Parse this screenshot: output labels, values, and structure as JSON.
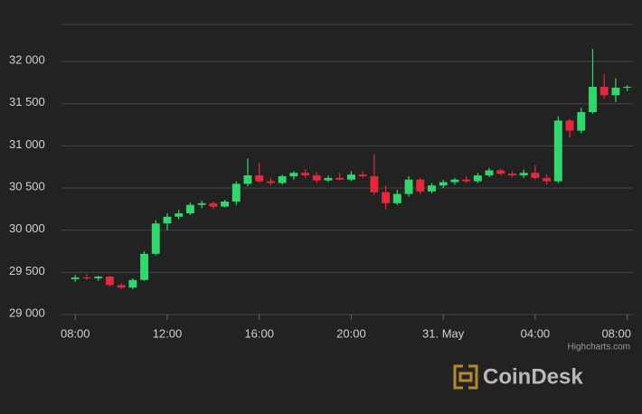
{
  "chart_data": {
    "type": "candlestick",
    "x": [
      8,
      8.5,
      9,
      9.5,
      10,
      10.5,
      11,
      11.5,
      12,
      12.5,
      13,
      13.5,
      14,
      14.5,
      15,
      15.5,
      16,
      16.5,
      17,
      17.5,
      18,
      18.5,
      19,
      19.5,
      20,
      20.5,
      21,
      21.5,
      22,
      22.5,
      23,
      23.5,
      24,
      24.5,
      25,
      25.5,
      26,
      26.5,
      27,
      27.5,
      28,
      28.5,
      29,
      29.5,
      30,
      30.5,
      31,
      31.5,
      32
    ],
    "open": [
      29420,
      29440,
      29430,
      29450,
      29350,
      29320,
      29410,
      29720,
      30080,
      30160,
      30200,
      30300,
      30320,
      30280,
      30340,
      30550,
      30650,
      30580,
      30560,
      30640,
      30680,
      30650,
      30590,
      30620,
      30600,
      30660,
      30640,
      30450,
      30320,
      30430,
      30600,
      30460,
      30530,
      30570,
      30600,
      30580,
      30650,
      30710,
      30670,
      30650,
      30680,
      30620,
      30580,
      31300,
      31180,
      31400,
      31700,
      31600,
      31690
    ],
    "high": [
      29470,
      29480,
      29460,
      29460,
      29370,
      29430,
      29750,
      30120,
      30200,
      30240,
      30330,
      30350,
      30340,
      30360,
      30580,
      30850,
      30800,
      30620,
      30660,
      30700,
      30720,
      30690,
      30650,
      30680,
      30700,
      30700,
      30900,
      30530,
      30480,
      30640,
      30620,
      30560,
      30600,
      30620,
      30640,
      30680,
      30740,
      30730,
      30700,
      30720,
      30770,
      30660,
      31350,
      31320,
      31450,
      32150,
      31850,
      31800,
      31720
    ],
    "low": [
      29390,
      29410,
      29400,
      29330,
      29300,
      29300,
      29400,
      29700,
      30000,
      30130,
      30180,
      30260,
      30250,
      30270,
      30300,
      30520,
      30560,
      30530,
      30540,
      30600,
      30620,
      30560,
      30570,
      30590,
      30580,
      30620,
      30420,
      30250,
      30300,
      30400,
      30430,
      30440,
      30500,
      30540,
      30560,
      30560,
      30630,
      30650,
      30630,
      30620,
      30600,
      30540,
      30560,
      31100,
      31150,
      31380,
      31560,
      31520,
      31650
    ],
    "close": [
      29440,
      29430,
      29450,
      29350,
      29320,
      29410,
      29720,
      30080,
      30160,
      30200,
      30300,
      30320,
      30280,
      30340,
      30550,
      30650,
      30580,
      30560,
      30640,
      30680,
      30650,
      30590,
      30620,
      30600,
      30660,
      30640,
      30450,
      30320,
      30430,
      30600,
      30460,
      30530,
      30570,
      30600,
      30580,
      30650,
      30710,
      30670,
      30650,
      30680,
      30620,
      30580,
      31300,
      31180,
      31400,
      31700,
      31600,
      31690,
      31700
    ],
    "up_color": "#2fd86b",
    "down_color": "#e8283a",
    "ylim": [
      29000,
      32440
    ],
    "yticks": [
      {
        "value": 29000,
        "label": "29 000"
      },
      {
        "value": 29500,
        "label": "29 500"
      },
      {
        "value": 30000,
        "label": "30 000"
      },
      {
        "value": 30500,
        "label": "30 500"
      },
      {
        "value": 31000,
        "label": "31 000"
      },
      {
        "value": 31500,
        "label": "31 500"
      },
      {
        "value": 32000,
        "label": "32 000"
      }
    ],
    "xlim": [
      7.4,
      32.25
    ],
    "xticks": [
      {
        "value": 8,
        "label": "08:00"
      },
      {
        "value": 12,
        "label": "12:00"
      },
      {
        "value": 16,
        "label": "16:00"
      },
      {
        "value": 20,
        "label": "20:00"
      },
      {
        "value": 24,
        "label": "31. May"
      },
      {
        "value": 28,
        "label": "04:00"
      },
      {
        "value": 32,
        "label": "08:00"
      }
    ],
    "grid": true,
    "credits": "Highcharts.com",
    "watermark": "CoinDesk"
  }
}
